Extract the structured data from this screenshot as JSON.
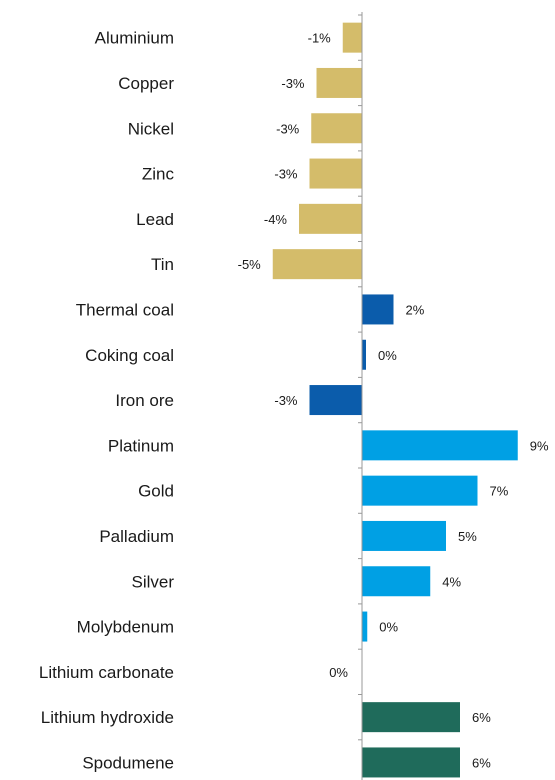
{
  "chart_data": {
    "type": "bar",
    "orientation": "horizontal",
    "title": "",
    "xlabel": "",
    "ylabel": "",
    "grid": false,
    "legend": "none",
    "xlim": [
      -5.5,
      9.5
    ],
    "categories": [
      "Aluminium",
      "Copper",
      "Nickel",
      "Zinc",
      "Lead",
      "Tin",
      "Thermal coal",
      "Coking coal",
      "Iron ore",
      "Platinum",
      "Gold",
      "Palladium",
      "Silver",
      "Molybdenum",
      "Lithium carbonate",
      "Lithium hydroxide",
      "Spodumene"
    ],
    "values": [
      -1.1,
      -2.6,
      -2.9,
      -3.0,
      -3.6,
      -5.1,
      1.8,
      0.2,
      -3.0,
      8.9,
      6.6,
      4.8,
      3.9,
      0.3,
      0.0,
      5.6,
      5.6
    ],
    "labels": [
      "-1%",
      "-3%",
      "-3%",
      "-3%",
      "-4%",
      "-5%",
      "2%",
      "0%",
      "-3%",
      "9%",
      "7%",
      "5%",
      "4%",
      "0%",
      "0%",
      "6%",
      "6%"
    ],
    "groups": [
      "base",
      "base",
      "base",
      "base",
      "base",
      "base",
      "bulk",
      "bulk",
      "bulk",
      "precious",
      "precious",
      "precious",
      "precious",
      "precious",
      "battery",
      "battery",
      "battery"
    ],
    "colors": {
      "base": "#D4BC6A",
      "bulk": "#0B5CAB",
      "precious": "#00A0E4",
      "battery": "#1F6B5B",
      "axis": "#999999",
      "text": "#1a1a1a"
    }
  }
}
